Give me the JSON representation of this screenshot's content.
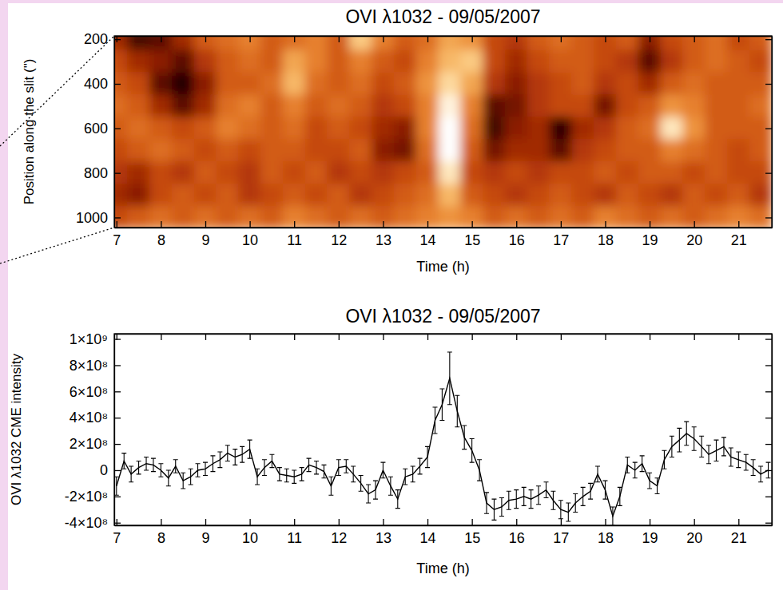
{
  "chart_data": [
    {
      "type": "heatmap",
      "title": "OVI λ1032 - 09/05/2007",
      "x_label": "Time (h)",
      "y_label": "Position along the slit (\")",
      "xlim": [
        6.95,
        21.75
      ],
      "ylim": [
        1045,
        185
      ],
      "xticks": [
        7,
        8,
        9,
        10,
        11,
        12,
        13,
        14,
        15,
        16,
        17,
        18,
        19,
        20,
        21
      ],
      "yticks": [
        200,
        400,
        600,
        800,
        1000
      ],
      "x": [
        7,
        7.5,
        8,
        8.5,
        9,
        9.5,
        10,
        10.5,
        11,
        11.5,
        12,
        12.5,
        13,
        13.5,
        14,
        14.5,
        15,
        15.5,
        16,
        16.5,
        17,
        17.5,
        18,
        18.5,
        19,
        19.5,
        20,
        20.5,
        21,
        21.5
      ],
      "y": [
        200,
        300,
        400,
        500,
        600,
        700,
        800,
        900,
        1000
      ],
      "zlim": [
        0,
        1
      ],
      "z": [
        [
          0.35,
          0.15,
          0.2,
          0.35,
          0.5,
          0.55,
          0.6,
          0.5,
          0.55,
          0.6,
          0.5,
          0.8,
          0.6,
          0.5,
          0.55,
          0.7,
          0.65,
          0.45,
          0.4,
          0.5,
          0.55,
          0.5,
          0.45,
          0.5,
          0.3,
          0.45,
          0.5,
          0.55,
          0.45,
          0.5
        ],
        [
          0.45,
          0.35,
          0.3,
          0.2,
          0.4,
          0.5,
          0.55,
          0.5,
          0.7,
          0.6,
          0.5,
          0.6,
          0.5,
          0.45,
          0.6,
          0.75,
          0.8,
          0.45,
          0.35,
          0.45,
          0.5,
          0.5,
          0.45,
          0.4,
          0.2,
          0.4,
          0.5,
          0.55,
          0.5,
          0.45
        ],
        [
          0.5,
          0.45,
          0.2,
          0.08,
          0.3,
          0.5,
          0.5,
          0.55,
          0.75,
          0.55,
          0.5,
          0.55,
          0.45,
          0.5,
          0.65,
          0.85,
          0.7,
          0.4,
          0.3,
          0.4,
          0.45,
          0.5,
          0.4,
          0.45,
          0.35,
          0.5,
          0.55,
          0.5,
          0.5,
          0.5
        ],
        [
          0.55,
          0.5,
          0.35,
          0.2,
          0.35,
          0.55,
          0.6,
          0.5,
          0.6,
          0.5,
          0.55,
          0.5,
          0.4,
          0.45,
          0.6,
          0.95,
          0.6,
          0.2,
          0.25,
          0.4,
          0.45,
          0.45,
          0.25,
          0.45,
          0.5,
          0.65,
          0.6,
          0.5,
          0.5,
          0.55
        ],
        [
          0.5,
          0.55,
          0.5,
          0.45,
          0.5,
          0.6,
          0.55,
          0.5,
          0.55,
          0.45,
          0.5,
          0.45,
          0.35,
          0.3,
          0.6,
          1.0,
          0.55,
          0.15,
          0.3,
          0.35,
          0.1,
          0.35,
          0.4,
          0.5,
          0.55,
          0.9,
          0.65,
          0.5,
          0.5,
          0.5
        ],
        [
          0.45,
          0.5,
          0.55,
          0.5,
          0.45,
          0.5,
          0.45,
          0.5,
          0.5,
          0.45,
          0.45,
          0.5,
          0.3,
          0.25,
          0.55,
          1.0,
          0.5,
          0.25,
          0.35,
          0.35,
          0.2,
          0.4,
          0.45,
          0.5,
          0.5,
          0.6,
          0.55,
          0.5,
          0.45,
          0.5
        ],
        [
          0.4,
          0.35,
          0.45,
          0.4,
          0.5,
          0.45,
          0.4,
          0.5,
          0.45,
          0.5,
          0.4,
          0.45,
          0.4,
          0.45,
          0.5,
          0.9,
          0.45,
          0.4,
          0.45,
          0.4,
          0.45,
          0.45,
          0.5,
          0.45,
          0.5,
          0.5,
          0.45,
          0.5,
          0.45,
          0.45
        ],
        [
          0.35,
          0.3,
          0.45,
          0.5,
          0.45,
          0.5,
          0.4,
          0.45,
          0.5,
          0.45,
          0.5,
          0.4,
          0.45,
          0.5,
          0.55,
          0.75,
          0.5,
          0.45,
          0.4,
          0.45,
          0.5,
          0.45,
          0.4,
          0.5,
          0.45,
          0.4,
          0.5,
          0.45,
          0.5,
          0.4
        ],
        [
          0.45,
          0.5,
          0.55,
          0.5,
          0.55,
          0.5,
          0.55,
          0.5,
          0.6,
          0.55,
          0.5,
          0.55,
          0.5,
          0.55,
          0.6,
          0.65,
          0.6,
          0.5,
          0.55,
          0.5,
          0.55,
          0.5,
          0.6,
          0.55,
          0.5,
          0.55,
          0.5,
          0.55,
          0.6,
          0.55
        ]
      ]
    },
    {
      "type": "line",
      "title": "OVI λ1032 - 09/05/2007",
      "x_label": "Time (h)",
      "y_label": "OVI λ1032 CME intensity",
      "xlim": [
        6.95,
        21.75
      ],
      "ylim": [
        -420000000,
        1040000000
      ],
      "xticks": [
        7,
        8,
        9,
        10,
        11,
        12,
        13,
        14,
        15,
        16,
        17,
        18,
        19,
        20,
        21
      ],
      "yticks": [
        {
          "value": 1000000000,
          "label": "1×10⁹"
        },
        {
          "value": 800000000,
          "label": "8×10⁸"
        },
        {
          "value": 600000000,
          "label": "6×10⁸"
        },
        {
          "value": 400000000,
          "label": "4×10⁸"
        },
        {
          "value": 200000000,
          "label": "2×10⁸"
        },
        0,
        {
          "value": -200000000,
          "label": "-2×10⁸"
        },
        {
          "value": -400000000,
          "label": "-4×10⁸"
        }
      ],
      "x": [
        7,
        7.17,
        7.33,
        7.5,
        7.67,
        7.83,
        8,
        8.17,
        8.33,
        8.5,
        8.67,
        8.83,
        9,
        9.17,
        9.33,
        9.5,
        9.67,
        9.83,
        10,
        10.17,
        10.33,
        10.5,
        10.67,
        10.83,
        11,
        11.17,
        11.33,
        11.5,
        11.67,
        11.83,
        12,
        12.17,
        12.33,
        12.5,
        12.67,
        12.83,
        13,
        13.17,
        13.33,
        13.5,
        13.67,
        13.83,
        14,
        14.17,
        14.33,
        14.5,
        14.67,
        14.83,
        15,
        15.17,
        15.33,
        15.5,
        15.67,
        15.83,
        16,
        16.17,
        16.33,
        16.5,
        16.67,
        16.83,
        17,
        17.17,
        17.33,
        17.5,
        17.67,
        17.83,
        18,
        18.17,
        18.33,
        18.5,
        18.67,
        18.83,
        19,
        19.17,
        19.33,
        19.5,
        19.67,
        19.83,
        20,
        20.17,
        20.33,
        20.5,
        20.67,
        20.83,
        21,
        21.17,
        21.33,
        21.5,
        21.67
      ],
      "series": [
        {
          "color": "#000000",
          "marker": "none",
          "line_style": "solid",
          "values": [
            -120000000,
            70000000,
            -30000000,
            20000000,
            50000000,
            40000000,
            0,
            -60000000,
            30000000,
            -80000000,
            -50000000,
            0,
            10000000,
            50000000,
            80000000,
            130000000,
            100000000,
            120000000,
            160000000,
            -50000000,
            20000000,
            70000000,
            -30000000,
            -40000000,
            -50000000,
            -30000000,
            40000000,
            20000000,
            -10000000,
            -120000000,
            20000000,
            30000000,
            -30000000,
            -100000000,
            -180000000,
            -150000000,
            0,
            -120000000,
            -220000000,
            -50000000,
            -30000000,
            30000000,
            100000000,
            380000000,
            500000000,
            700000000,
            450000000,
            250000000,
            150000000,
            0,
            -250000000,
            -300000000,
            -280000000,
            -230000000,
            -220000000,
            -200000000,
            -220000000,
            -190000000,
            -150000000,
            -230000000,
            -300000000,
            -320000000,
            -250000000,
            -200000000,
            -160000000,
            -30000000,
            -150000000,
            -350000000,
            -200000000,
            40000000,
            0,
            50000000,
            -80000000,
            -120000000,
            80000000,
            180000000,
            230000000,
            280000000,
            240000000,
            180000000,
            120000000,
            150000000,
            180000000,
            100000000,
            80000000,
            60000000,
            20000000,
            -30000000,
            0
          ],
          "errors": [
            70000000,
            60000000,
            60000000,
            50000000,
            50000000,
            50000000,
            50000000,
            60000000,
            50000000,
            60000000,
            60000000,
            50000000,
            50000000,
            60000000,
            60000000,
            60000000,
            60000000,
            60000000,
            70000000,
            60000000,
            60000000,
            50000000,
            50000000,
            50000000,
            50000000,
            50000000,
            50000000,
            50000000,
            50000000,
            70000000,
            60000000,
            50000000,
            60000000,
            60000000,
            70000000,
            70000000,
            60000000,
            70000000,
            70000000,
            60000000,
            60000000,
            60000000,
            80000000,
            100000000,
            120000000,
            200000000,
            120000000,
            90000000,
            90000000,
            80000000,
            80000000,
            80000000,
            70000000,
            70000000,
            70000000,
            70000000,
            70000000,
            70000000,
            60000000,
            70000000,
            70000000,
            70000000,
            70000000,
            70000000,
            60000000,
            60000000,
            70000000,
            70000000,
            70000000,
            60000000,
            60000000,
            60000000,
            60000000,
            60000000,
            70000000,
            80000000,
            90000000,
            90000000,
            90000000,
            80000000,
            70000000,
            80000000,
            70000000,
            70000000,
            60000000,
            60000000,
            60000000,
            60000000,
            60000000
          ]
        }
      ]
    }
  ]
}
